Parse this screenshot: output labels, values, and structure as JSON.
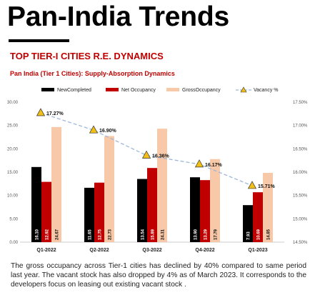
{
  "header": {
    "title": "Pan-India Trends",
    "section_title": "TOP TIER-I CITIES R.E. DYNAMICS"
  },
  "colors": {
    "new_completed": "#000000",
    "net_occupancy": "#c00000",
    "gross_occupancy": "#f8c9a8",
    "vacancy_line": "#9db8d9",
    "vacancy_marker": "#f2c014",
    "accent_red": "#c00000"
  },
  "chart_data": {
    "type": "bar",
    "title": "Pan India (Tier 1 Cities): Supply-Absorption Dynamics",
    "categories": [
      "Q1-2022",
      "Q2-2022",
      "Q3-2022",
      "Q4-2022",
      "Q1-2023"
    ],
    "series": [
      {
        "name": "NewCompleted",
        "type": "bar",
        "axis": "left",
        "values": [
          16.1,
          11.65,
          13.54,
          13.9,
          7.93
        ],
        "labels": [
          "16.10",
          "11.65",
          "13.54",
          "13.90",
          "7.93"
        ]
      },
      {
        "name": "Net Occupancy",
        "type": "bar",
        "axis": "left",
        "values": [
          12.92,
          12.75,
          15.89,
          13.29,
          10.69
        ],
        "labels": [
          "12.92",
          "12.75",
          "15.89",
          "13.29",
          "10.69"
        ]
      },
      {
        "name": "GrossOccupancy",
        "type": "bar",
        "axis": "left",
        "values": [
          24.67,
          22.73,
          24.31,
          17.79,
          14.85
        ],
        "labels": [
          "24.67",
          "22.73",
          "24.31",
          "17.79",
          "14.85"
        ]
      },
      {
        "name": "Vacancy %",
        "type": "line",
        "axis": "right",
        "values": [
          17.27,
          16.9,
          16.36,
          16.17,
          15.71
        ],
        "labels": [
          "17.27%",
          "16.90%",
          "16.36%",
          "16.17%",
          "15.71%"
        ]
      }
    ],
    "y_left": {
      "ylim": [
        0,
        30
      ],
      "ticks": [
        0,
        5,
        10,
        15,
        20,
        25,
        30
      ],
      "tick_labels": [
        "0.00",
        "5.00",
        "10.00",
        "15.00",
        "20.00",
        "25.00",
        "30.00"
      ]
    },
    "y_right": {
      "ylim": [
        14.5,
        17.5
      ],
      "ticks": [
        14.5,
        15.0,
        15.5,
        16.0,
        16.5,
        17.0,
        17.5
      ],
      "tick_labels": [
        "14.50%",
        "15.00%",
        "15.50%",
        "16.00%",
        "16.50%",
        "17.00%",
        "17.50%"
      ]
    },
    "grid": false,
    "legend_position": "top"
  },
  "footer": {
    "text": "The gross occupancy across Tier-1 cities has declined by 40% compared to same period last year. The vacant stock has also dropped by 4% as of March 2023. It corresponds to the developers focus on leasing out existing vacant stock ."
  }
}
